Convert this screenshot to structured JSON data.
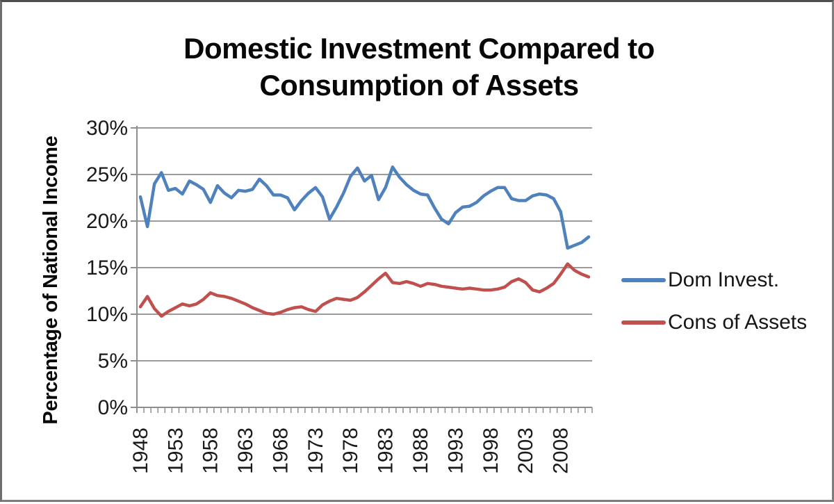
{
  "page": {
    "background": "#ffffff",
    "frame_border_color": "#7d7d7d"
  },
  "chart_data": {
    "type": "line",
    "title_lines": [
      "Domestic Investment Compared to",
      "Consumption of Assets"
    ],
    "title": "Domestic Investment Compared to Consumption of Assets",
    "xlabel": "",
    "ylabel": "Percentage of National Income",
    "ylim": [
      0,
      30
    ],
    "y_tick_labels": [
      "0%",
      "5%",
      "10%",
      "15%",
      "20%",
      "25%",
      "30%"
    ],
    "x_tick_label_years": [
      "1948",
      "1953",
      "1958",
      "1963",
      "1968",
      "1973",
      "1978",
      "1983",
      "1988",
      "1993",
      "1998",
      "2003",
      "2008"
    ],
    "grid": "horizontal",
    "legend_position": "right",
    "years": [
      1948,
      1949,
      1950,
      1951,
      1952,
      1953,
      1954,
      1955,
      1956,
      1957,
      1958,
      1959,
      1960,
      1961,
      1962,
      1963,
      1964,
      1965,
      1966,
      1967,
      1968,
      1969,
      1970,
      1971,
      1972,
      1973,
      1974,
      1975,
      1976,
      1977,
      1978,
      1979,
      1980,
      1981,
      1982,
      1983,
      1984,
      1985,
      1986,
      1987,
      1988,
      1989,
      1990,
      1991,
      1992,
      1993,
      1994,
      1995,
      1996,
      1997,
      1998,
      1999,
      2000,
      2001,
      2002,
      2003,
      2004,
      2005,
      2006,
      2007,
      2008,
      2009,
      2010,
      2011,
      2012
    ],
    "series": [
      {
        "name": "Dom Invest.",
        "color": "#4F81BD",
        "values": [
          22.6,
          19.4,
          24.0,
          25.2,
          23.3,
          23.5,
          22.9,
          24.3,
          23.9,
          23.4,
          22.0,
          23.8,
          23.0,
          22.5,
          23.3,
          23.2,
          23.4,
          24.5,
          23.8,
          22.8,
          22.8,
          22.5,
          21.2,
          22.2,
          23.0,
          23.6,
          22.6,
          20.2,
          21.5,
          23.0,
          24.8,
          25.7,
          24.3,
          24.9,
          22.3,
          23.6,
          25.8,
          24.7,
          23.9,
          23.3,
          22.9,
          22.8,
          21.4,
          20.2,
          19.7,
          20.9,
          21.5,
          21.6,
          22.0,
          22.7,
          23.2,
          23.6,
          23.6,
          22.4,
          22.2,
          22.2,
          22.7,
          22.9,
          22.8,
          22.4,
          21.0,
          17.1,
          17.4,
          17.7,
          18.3
        ]
      },
      {
        "name": "Cons of Assets",
        "color": "#C0504D",
        "values": [
          10.8,
          11.9,
          10.6,
          9.8,
          10.3,
          10.7,
          11.1,
          10.9,
          11.1,
          11.6,
          12.3,
          12.0,
          11.9,
          11.7,
          11.4,
          11.1,
          10.7,
          10.4,
          10.1,
          10.0,
          10.2,
          10.5,
          10.7,
          10.8,
          10.5,
          10.3,
          11.0,
          11.4,
          11.7,
          11.6,
          11.5,
          11.8,
          12.4,
          13.1,
          13.8,
          14.4,
          13.4,
          13.3,
          13.5,
          13.3,
          13.0,
          13.3,
          13.2,
          13.0,
          12.9,
          12.8,
          12.7,
          12.8,
          12.7,
          12.6,
          12.6,
          12.7,
          12.9,
          13.5,
          13.8,
          13.4,
          12.6,
          12.4,
          12.8,
          13.3,
          14.3,
          15.4,
          14.7,
          14.3,
          14.0
        ]
      }
    ],
    "colors": {
      "gridline": "#9b9b9b",
      "axis": "#8e8e8e",
      "tick_text": "#1a1a1a"
    }
  }
}
